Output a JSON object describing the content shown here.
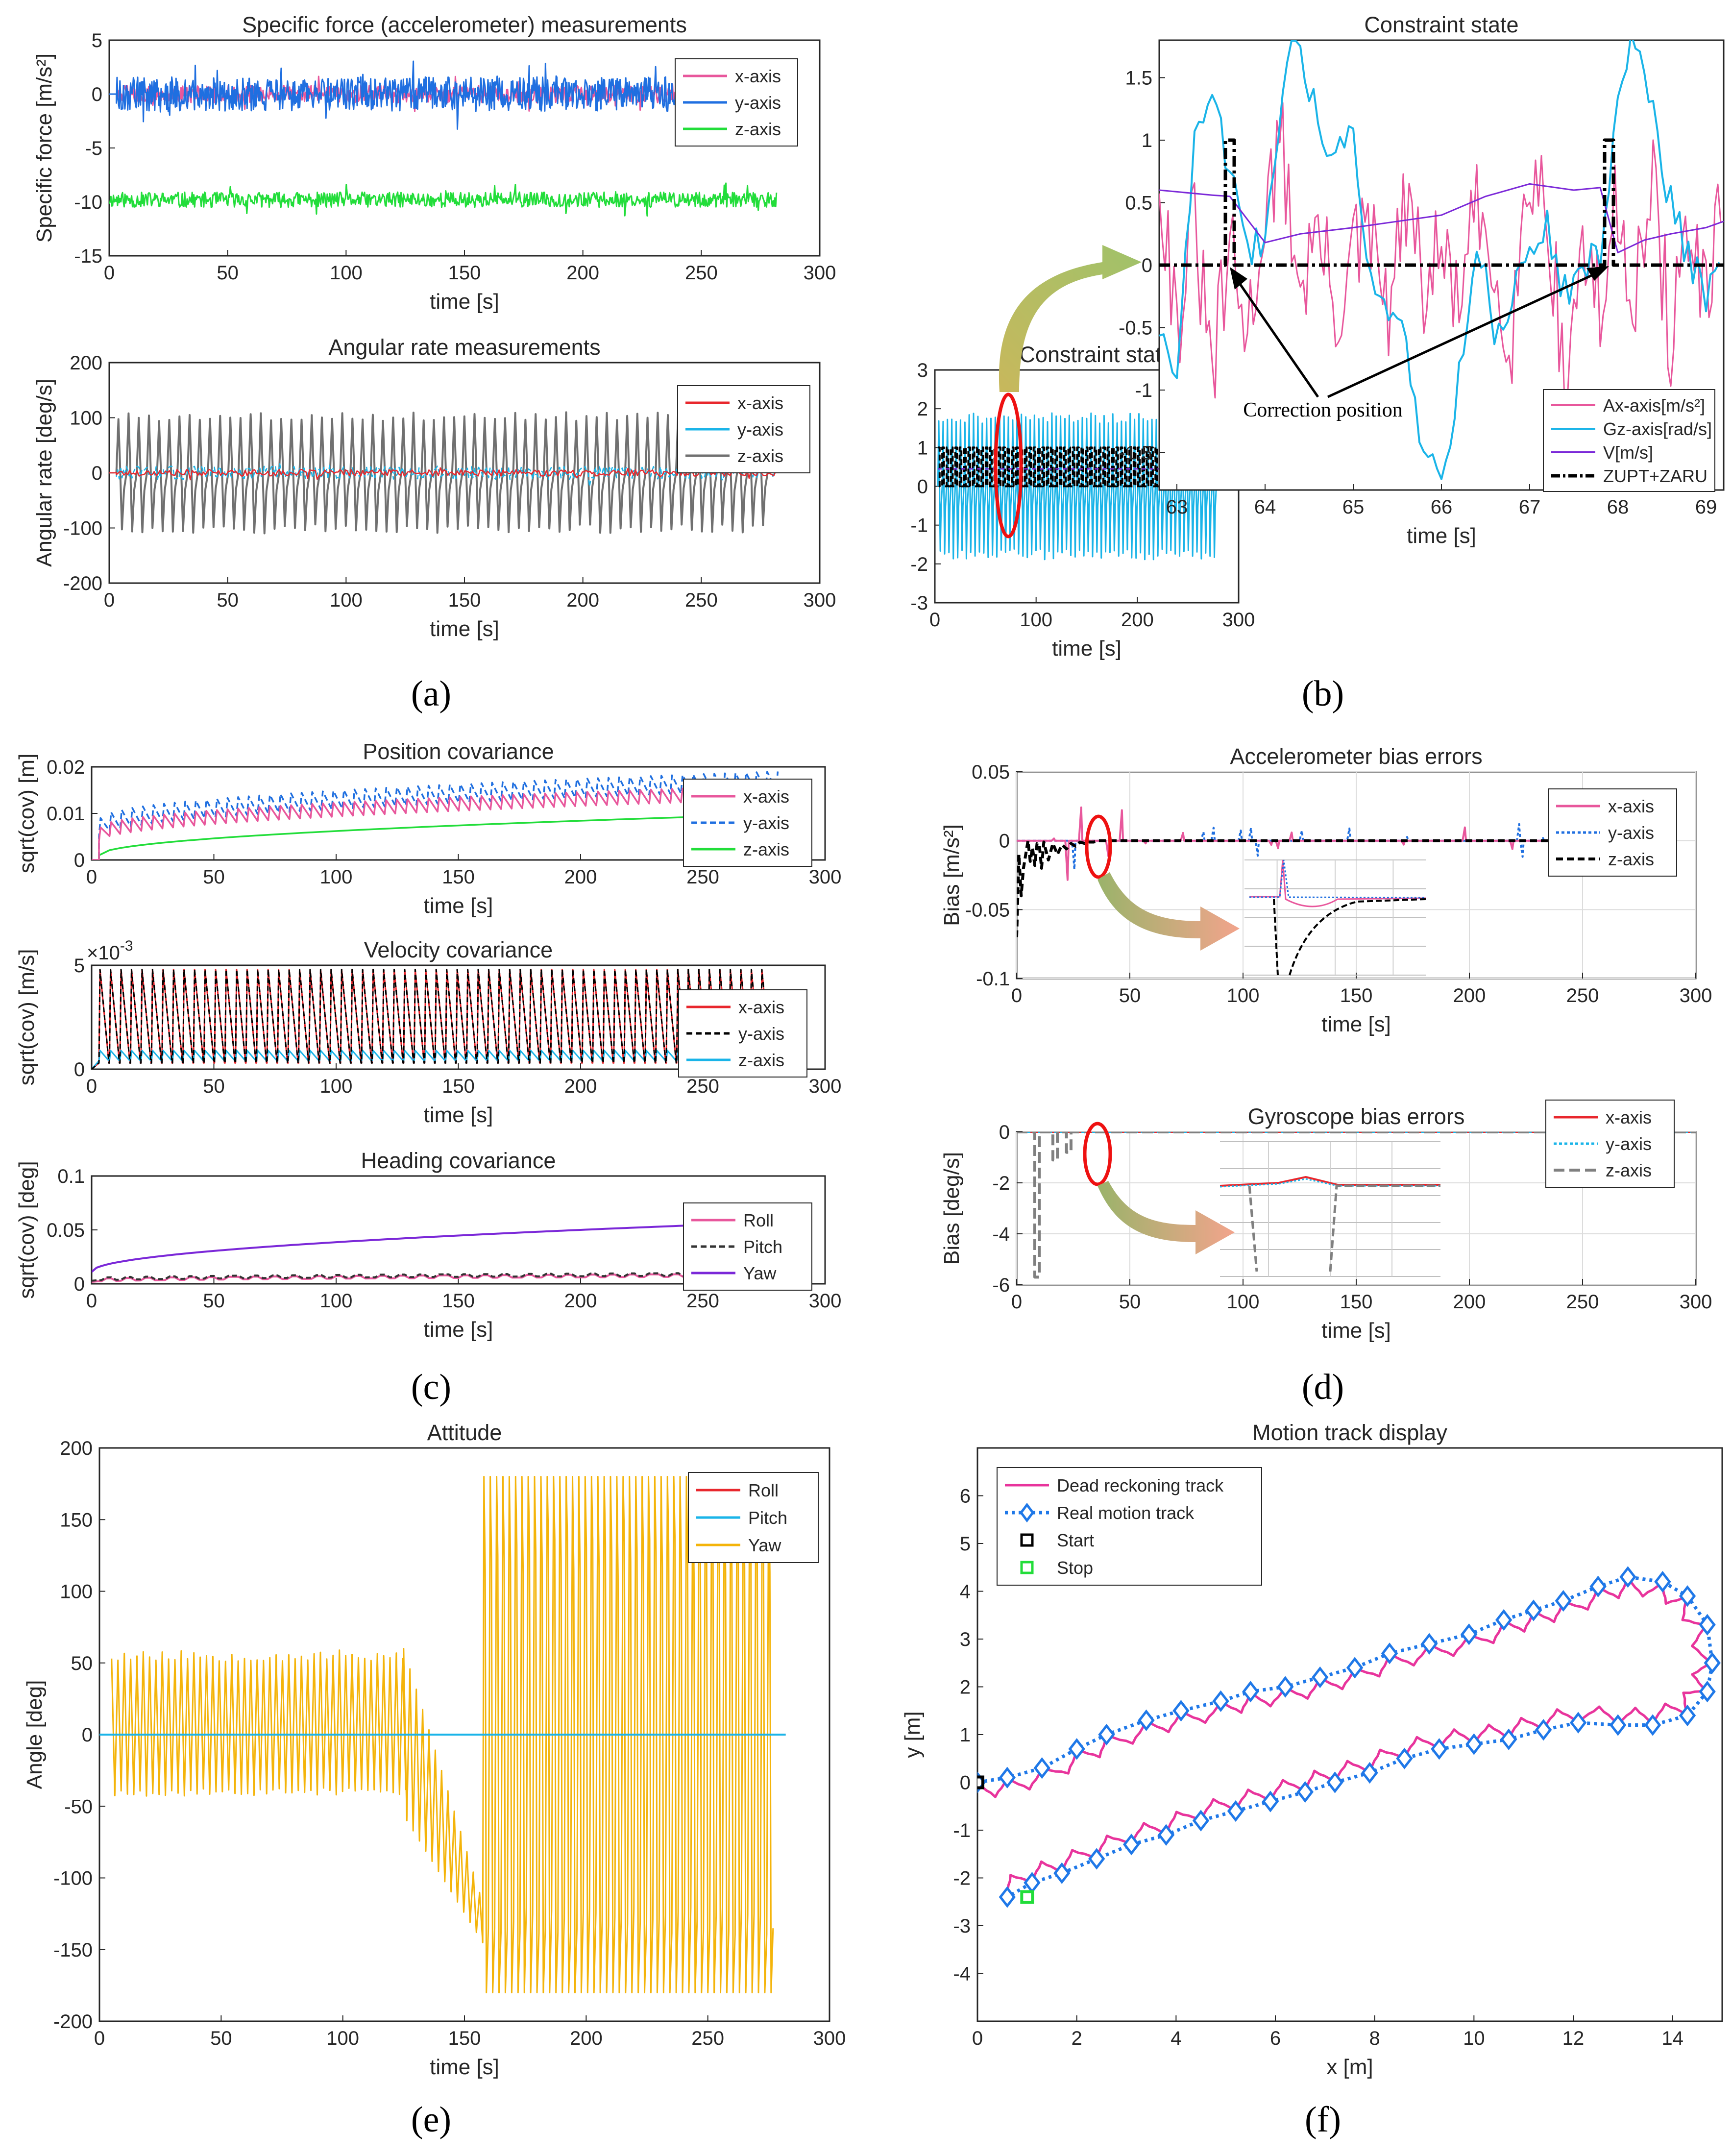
{
  "figure": {
    "subcaptions": [
      "(a)",
      "(b)",
      "(c)",
      "(d)",
      "(e)",
      "(f)"
    ],
    "annotation_text": "Correction position"
  },
  "chart_data": [
    {
      "id": "specific-force",
      "type": "line",
      "title": "Specific force (accelerometer) measurements",
      "xlabel": "time [s]",
      "ylabel": "Specific force [m/s²]",
      "xlim": [
        0,
        300
      ],
      "ylim": [
        -15,
        5
      ],
      "xticks": [
        0,
        50,
        100,
        150,
        200,
        250,
        300
      ],
      "yticks": [
        5,
        0,
        -5,
        -10,
        -15
      ],
      "grid": false,
      "legend": "top-right",
      "series": [
        {
          "name": "x-axis",
          "color": "#e8579c",
          "x": [
            0,
            282
          ],
          "y": [
            0,
            0
          ],
          "noise": 0.8,
          "start": 3
        },
        {
          "name": "y-axis",
          "color": "#1f6fe0",
          "x": [
            0,
            282
          ],
          "y": [
            0,
            0
          ],
          "noise": 1.6,
          "start": 3
        },
        {
          "name": "z-axis",
          "color": "#22dd3a",
          "x": [
            0,
            282
          ],
          "y": [
            -9.8,
            -9.8
          ],
          "noise": 0.7,
          "start": 0
        }
      ]
    },
    {
      "id": "angular-rate",
      "type": "line",
      "title": "Angular rate measurements",
      "xlabel": "time [s]",
      "ylabel": "Angular rate  [deg/s]",
      "xlim": [
        0,
        300
      ],
      "ylim": [
        -200,
        200
      ],
      "xticks": [
        0,
        50,
        100,
        150,
        200,
        250,
        300
      ],
      "yticks": [
        200,
        100,
        0,
        -100,
        -200
      ],
      "grid": false,
      "legend": "top-right",
      "series": [
        {
          "name": "x-axis",
          "color": "#e8272d",
          "x": [
            0,
            282
          ],
          "y": [
            0,
            0
          ],
          "noise": 6,
          "start": 3
        },
        {
          "name": "y-axis",
          "color": "#1ab4e8",
          "x": [
            0,
            282
          ],
          "y": [
            0,
            0
          ],
          "noise": 12,
          "start": 3
        },
        {
          "name": "z-axis",
          "color": "#707070",
          "x": [
            3,
            278
          ],
          "amplitude": [
            110,
            -110
          ],
          "cycles": 64
        }
      ]
    },
    {
      "id": "constraint-state",
      "type": "line",
      "title": "Constraint state",
      "xlabel": "time [s]",
      "xlim": [
        0,
        300
      ],
      "ylim": [
        -3,
        3
      ],
      "xticks": [
        0,
        100,
        200,
        300
      ],
      "yticks": [
        3,
        2,
        1,
        0,
        -1,
        -2,
        -3
      ],
      "grid": false,
      "series": [
        {
          "name": "Gz-axis[rad/s]",
          "color": "#1ab4e8",
          "x": [
            3,
            278
          ],
          "amplitude": [
            1.9,
            -1.9
          ],
          "cycles": 64
        },
        {
          "name": "ZUPT+ZARU",
          "color": "#000000",
          "x": [
            3,
            278
          ],
          "values": [
            0,
            1
          ]
        }
      ]
    },
    {
      "id": "constraint-state-zoom",
      "type": "line",
      "title": "Constraint state",
      "xlabel": "time [s]",
      "xlim": [
        62.8,
        69.2
      ],
      "ylim": [
        -1.8,
        1.8
      ],
      "xticks": [
        63,
        64,
        65,
        66,
        67,
        68,
        69
      ],
      "yticks": [
        1.5,
        1,
        0.5,
        0,
        -0.5,
        -1,
        -1.5
      ],
      "grid": false,
      "legend": "bottom-right",
      "series": [
        {
          "name": "Ax-axis[m/s²]",
          "color": "#e8579c",
          "x": [
            62.8,
            63.0,
            63.2,
            63.4,
            63.6,
            63.8,
            64.0,
            64.2,
            64.4,
            64.6,
            64.8,
            65.0,
            65.2,
            65.4,
            65.6,
            65.8,
            66.0,
            66.2,
            66.4,
            66.6,
            66.8,
            67.0,
            67.2,
            67.4,
            67.6,
            67.8,
            68.0,
            68.2,
            68.4,
            68.6,
            68.8,
            69.0,
            69.2
          ],
          "y": [
            0.8,
            -0.5,
            0.3,
            -0.9,
            0.1,
            -0.6,
            0.5,
            0.9,
            -0.2,
            0.3,
            -0.4,
            0.1,
            0.2,
            -0.4,
            0.5,
            -0.2,
            0.1,
            -0.3,
            0.4,
            -0.1,
            -0.5,
            0.8,
            0.5,
            -1.0,
            0.2,
            -0.4,
            0.5,
            -0.2,
            0.6,
            -0.6,
            0.3,
            -0.4,
            0.5
          ]
        },
        {
          "name": "Gz-axis[rad/s]",
          "color": "#1ab4e8",
          "x": [
            62.8,
            63.0,
            63.2,
            63.4,
            63.6,
            63.8,
            64.0,
            64.2,
            64.4,
            64.6,
            64.8,
            65.0,
            65.2,
            65.4,
            65.6,
            65.8,
            66.0,
            66.2,
            66.4,
            66.6,
            66.8,
            67.0,
            67.2,
            67.4,
            67.6,
            67.8,
            68.0,
            68.2,
            68.4,
            68.6,
            68.8,
            69.0,
            69.2
          ],
          "y": [
            -0.5,
            -0.8,
            0.9,
            1.3,
            0.8,
            0.1,
            0.2,
            1.5,
            1.8,
            1.1,
            0.9,
            1.0,
            -0.2,
            -0.3,
            -0.6,
            -1.5,
            -1.7,
            -0.9,
            0.2,
            -0.5,
            -0.3,
            0.1,
            0.3,
            -0.2,
            -0.1,
            0.1,
            1.4,
            1.8,
            1.2,
            0.5,
            0.1,
            -0.3,
            0.0
          ]
        },
        {
          "name": "V[m/s]",
          "color": "#7b28d8",
          "x": [
            62.8,
            63.4,
            63.6,
            64.0,
            64.4,
            65.0,
            65.5,
            66.0,
            66.5,
            67.0,
            67.5,
            67.8,
            68.0,
            68.3,
            68.6,
            69.0,
            69.2
          ],
          "y": [
            0.6,
            0.56,
            0.55,
            0.18,
            0.25,
            0.3,
            0.35,
            0.4,
            0.55,
            0.65,
            0.6,
            0.62,
            0.1,
            0.2,
            0.25,
            0.3,
            0.35
          ]
        },
        {
          "name": "ZUPT+ZARU",
          "color": "#000000",
          "x": [
            62.8,
            63.55,
            63.55,
            63.65,
            63.65,
            67.85,
            67.85,
            67.95,
            67.95,
            69.2
          ],
          "y": [
            0,
            0,
            1,
            1,
            0,
            0,
            1,
            1,
            0,
            0
          ]
        }
      ]
    },
    {
      "id": "position-covariance",
      "type": "line",
      "title": "Position covariance",
      "xlabel": "time [s]",
      "ylabel": "sqrt(cov) [m]",
      "xlim": [
        0,
        300
      ],
      "ylim": [
        0,
        0.02
      ],
      "xticks": [
        0,
        50,
        100,
        150,
        200,
        250,
        300
      ],
      "yticks": [
        0.02,
        0.01,
        0
      ],
      "grid": false,
      "legend": "top-right",
      "series": [
        {
          "name": "x-axis",
          "color": "#e8579c",
          "x": [
            3,
            280
          ],
          "y": [
            0.004,
            0.013
          ],
          "sawtooth": 0.003
        },
        {
          "name": "y-axis",
          "color": "#1f6fe0",
          "x": [
            3,
            280
          ],
          "y": [
            0.005,
            0.015
          ],
          "sawtooth": 0.004
        },
        {
          "name": "z-axis",
          "color": "#22dd3a",
          "x": [
            3,
            280
          ],
          "y": [
            0.001,
            0.0098
          ]
        }
      ]
    },
    {
      "id": "velocity-covariance",
      "type": "line",
      "title": "Velocity covariance",
      "xlabel": "time [s]",
      "ylabel": "sqrt(cov) [m/s]",
      "multiplier": "×10",
      "multiplier_exp": "-3",
      "xlim": [
        0,
        300
      ],
      "ylim": [
        0,
        5
      ],
      "xticks": [
        0,
        50,
        100,
        150,
        200,
        250,
        300
      ],
      "yticks": [
        5,
        0
      ],
      "grid": false,
      "legend": "top-right",
      "series": [
        {
          "name": "x-axis",
          "color": "#e8272d",
          "x": [
            3,
            278
          ],
          "peak": 4.8,
          "base": 0.3
        },
        {
          "name": "y-axis",
          "color": "#000000",
          "x": [
            3,
            278
          ],
          "peak": 4.8,
          "base": 0.3
        },
        {
          "name": "z-axis",
          "color": "#1ab4e8",
          "x": [
            3,
            278
          ],
          "peak": 0.9,
          "base": 0.4
        }
      ]
    },
    {
      "id": "heading-covariance",
      "type": "line",
      "title": "Heading covariance",
      "xlabel": "time [s]",
      "ylabel": "sqrt(cov) [deg]",
      "xlim": [
        0,
        300
      ],
      "ylim": [
        0,
        0.1
      ],
      "xticks": [
        0,
        50,
        100,
        150,
        200,
        250,
        300
      ],
      "yticks": [
        0.1,
        0.05,
        0
      ],
      "grid": false,
      "legend": "bottom-right",
      "series": [
        {
          "name": "Roll",
          "color": "#e8579c",
          "x": [
            0,
            278
          ],
          "y": [
            0.003,
            0.008
          ]
        },
        {
          "name": "Pitch",
          "color": "#333333",
          "x": [
            0,
            278
          ],
          "y": [
            0.004,
            0.009
          ]
        },
        {
          "name": "Yaw",
          "color": "#7b28d8",
          "x": [
            0,
            278
          ],
          "y": [
            0.011,
            0.057
          ]
        }
      ]
    },
    {
      "id": "accelerometer-bias",
      "type": "line",
      "title": "Accelerometer bias errors",
      "xlabel": "time [s]",
      "ylabel": "Bias [m/s²]",
      "xlim": [
        0,
        300
      ],
      "ylim": [
        -0.1,
        0.05
      ],
      "xticks": [
        0,
        50,
        100,
        150,
        200,
        250,
        300
      ],
      "yticks": [
        0.05,
        0,
        -0.05,
        -0.1
      ],
      "grid": true,
      "legend": "top-right",
      "series": [
        {
          "name": "x-axis",
          "color": "#e8579c",
          "x": [
            0,
            240
          ],
          "y": [
            0,
            0
          ]
        },
        {
          "name": "y-axis",
          "color": "#1f6fe0",
          "x": [
            0,
            240
          ],
          "y": [
            0,
            0
          ]
        },
        {
          "name": "z-axis",
          "color": "#000000",
          "x": [
            0,
            1,
            2,
            3,
            4,
            5,
            6,
            7,
            8,
            9,
            10,
            11,
            12,
            14,
            16,
            18,
            20,
            22,
            24,
            26,
            28,
            30,
            32,
            34,
            36,
            240
          ],
          "y": [
            -0.07,
            -0.01,
            -0.04,
            -0.02,
            -0.01,
            0.0,
            -0.015,
            -0.005,
            -0.018,
            -0.002,
            -0.003,
            -0.02,
            -0.001,
            -0.014,
            -0.002,
            -0.01,
            -0.003,
            -0.006,
            -0.002,
            -0.004,
            -0.001,
            -0.002,
            -0.001,
            -0.001,
            0,
            0
          ]
        }
      ]
    },
    {
      "id": "gyroscope-bias",
      "type": "line",
      "title": "Gyroscope bias errors",
      "xlabel": "time [s]",
      "ylabel": "Bias [deg/s]",
      "xlim": [
        0,
        300
      ],
      "ylim": [
        -6,
        0
      ],
      "xticks": [
        0,
        50,
        100,
        150,
        200,
        250,
        300
      ],
      "yticks": [
        0,
        -2,
        -4,
        -6
      ],
      "grid": true,
      "legend": "top-right",
      "series": [
        {
          "name": "x-axis",
          "color": "#e8272d",
          "x": [
            0,
            300
          ],
          "y": [
            0,
            0
          ]
        },
        {
          "name": "y-axis",
          "color": "#1ab4e8",
          "x": [
            0,
            300
          ],
          "y": [
            0,
            0
          ]
        },
        {
          "name": "z-axis",
          "color": "#808080",
          "x": [
            0,
            8,
            8,
            10,
            10,
            16,
            16,
            18,
            18,
            22,
            22,
            24,
            24,
            30,
            30,
            32,
            32,
            300
          ],
          "y": [
            0,
            0,
            -5.7,
            -5.7,
            0,
            0,
            -1.1,
            -1.1,
            0,
            0,
            -0.8,
            -0.8,
            0,
            0,
            0.4,
            0.4,
            0,
            0
          ]
        }
      ]
    },
    {
      "id": "attitude",
      "type": "line",
      "title": "Attitude",
      "xlabel": "time [s]",
      "ylabel": "Angle [deg]",
      "xlim": [
        0,
        300
      ],
      "ylim": [
        -200,
        200
      ],
      "xticks": [
        0,
        50,
        100,
        150,
        200,
        250,
        300
      ],
      "yticks": [
        200,
        150,
        100,
        50,
        0,
        -50,
        -100,
        -150,
        -200
      ],
      "grid": false,
      "legend": "top-right",
      "series": [
        {
          "name": "Roll",
          "color": "#e8272d",
          "x": [
            0,
            282
          ],
          "y": [
            0,
            0
          ]
        },
        {
          "name": "Pitch",
          "color": "#1ab4e8",
          "x": [
            0,
            282
          ],
          "y": [
            0,
            0
          ]
        },
        {
          "name": "Yaw",
          "color": "#f4b40a",
          "segments": [
            {
              "x": [
                5,
                125
              ],
              "upper": 55,
              "lower": -40
            },
            {
              "x": [
                125,
                158
              ],
              "upper_from": 60,
              "upper_to": -120,
              "lower_from": -40,
              "lower_to": -150
            },
            {
              "x": [
                158,
                275
              ],
              "upper": 180,
              "lower": -180
            }
          ]
        }
      ]
    },
    {
      "id": "motion-track",
      "type": "line",
      "title": "Motion track display",
      "xlabel": "x [m]",
      "ylabel": "y [m]",
      "xlim": [
        0,
        15
      ],
      "ylim": [
        -5,
        7
      ],
      "xticks": [
        0,
        2,
        4,
        6,
        8,
        10,
        12,
        14
      ],
      "yticks": [
        6,
        5,
        4,
        3,
        2,
        1,
        0,
        -1,
        -2,
        -3,
        -4
      ],
      "grid": false,
      "legend": "top-left",
      "series": [
        {
          "name": "Dead reckoning track",
          "color": "#e8349c"
        },
        {
          "name": "Real motion track",
          "color": "#1f78e8",
          "x": [
            0.0,
            0.6,
            1.3,
            2.0,
            2.6,
            3.4,
            4.1,
            4.9,
            5.5,
            6.2,
            6.9,
            7.6,
            8.3,
            9.1,
            9.9,
            10.6,
            11.2,
            11.8,
            12.5,
            13.1,
            13.8,
            14.3,
            14.7,
            14.8,
            14.7,
            14.3,
            13.6,
            12.9,
            12.1,
            11.4,
            10.7,
            10.0,
            9.3,
            8.6,
            7.9,
            7.2,
            6.6,
            5.9,
            5.2,
            4.5,
            3.8,
            3.1,
            2.4,
            1.7,
            1.1,
            0.6
          ],
          "y": [
            0.0,
            0.1,
            0.3,
            0.7,
            1.0,
            1.3,
            1.5,
            1.7,
            1.9,
            2.0,
            2.2,
            2.4,
            2.7,
            2.9,
            3.1,
            3.4,
            3.6,
            3.8,
            4.1,
            4.3,
            4.2,
            3.9,
            3.3,
            2.5,
            1.9,
            1.4,
            1.2,
            1.2,
            1.25,
            1.1,
            0.9,
            0.8,
            0.7,
            0.5,
            0.2,
            0.0,
            -0.2,
            -0.4,
            -0.6,
            -0.8,
            -1.1,
            -1.3,
            -1.6,
            -1.9,
            -2.1,
            -2.4
          ]
        },
        {
          "name": "Start",
          "color": "#000000",
          "x": [
            0.0
          ],
          "y": [
            0.0
          ]
        },
        {
          "name": "Stop",
          "color": "#22dd3a",
          "x": [
            1.0
          ],
          "y": [
            -2.4
          ]
        }
      ]
    }
  ]
}
